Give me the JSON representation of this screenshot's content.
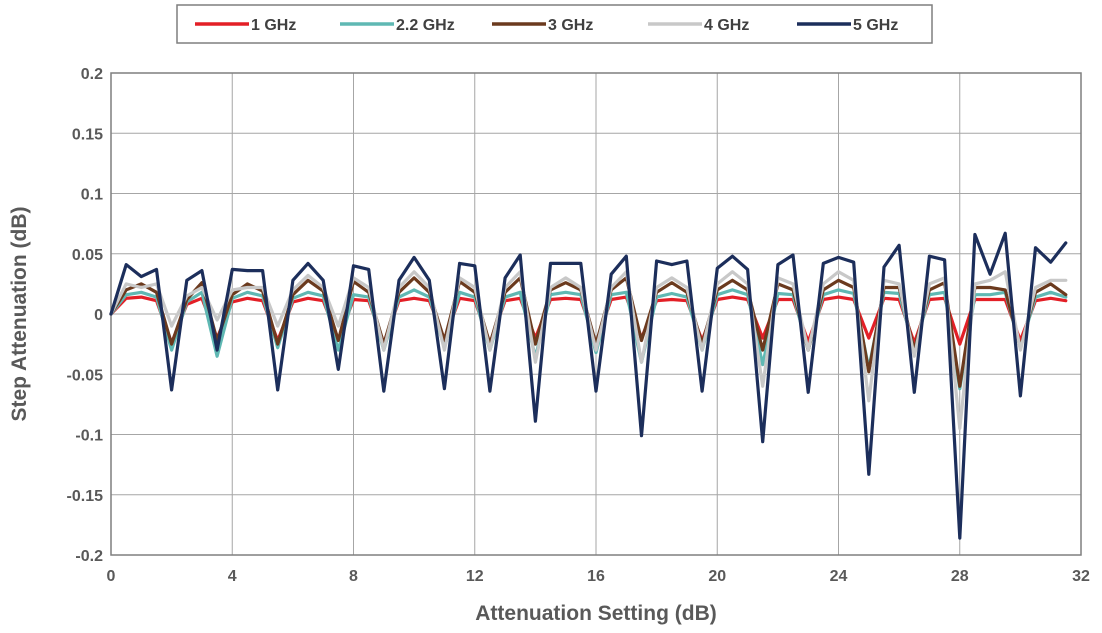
{
  "chart_data": {
    "type": "line",
    "title": "",
    "xlabel": "Attenuation Setting (dB)",
    "ylabel": "Step Attenuation (dB)",
    "xlim": [
      0,
      32
    ],
    "ylim": [
      -0.2,
      0.2
    ],
    "xticks": [
      0,
      4,
      8,
      12,
      16,
      20,
      24,
      28,
      32
    ],
    "yticks": [
      -0.2,
      -0.15,
      -0.1,
      -0.05,
      0,
      0.05,
      0.1,
      0.15,
      0.2
    ],
    "ytick_labels": [
      "-0.2",
      "-0.15",
      "-0.1",
      "-0.05",
      "0",
      "0.05",
      "0.1",
      "0.15",
      "0.2"
    ],
    "grid": true,
    "legend_position": "top",
    "x": [
      0,
      0.5,
      1,
      1.5,
      2,
      2.5,
      3,
      3.5,
      4,
      4.5,
      5,
      5.5,
      6,
      6.5,
      7,
      7.5,
      8,
      8.5,
      9,
      9.5,
      10,
      10.5,
      11,
      11.5,
      12,
      12.5,
      13,
      13.5,
      14,
      14.5,
      15,
      15.5,
      16,
      16.5,
      17,
      17.5,
      18,
      18.5,
      19,
      19.5,
      20,
      20.5,
      21,
      21.5,
      22,
      22.5,
      23,
      23.5,
      24,
      24.5,
      25,
      25.5,
      26,
      26.5,
      27,
      27.5,
      28,
      28.5,
      29,
      29.5,
      30,
      30.5,
      31,
      31.5
    ],
    "series": [
      {
        "name": "1 GHz",
        "color": "#e31f26",
        "values": [
          0,
          0.013,
          0.014,
          0.011,
          -0.024,
          0.008,
          0.013,
          -0.02,
          0.01,
          0.013,
          0.011,
          -0.022,
          0.01,
          0.013,
          0.011,
          -0.021,
          0.012,
          0.011,
          -0.024,
          0.011,
          0.013,
          0.011,
          -0.021,
          0.013,
          0.011,
          -0.024,
          0.011,
          0.013,
          -0.02,
          0.012,
          0.013,
          0.012,
          -0.024,
          0.012,
          0.014,
          -0.02,
          0.011,
          0.012,
          0.011,
          -0.022,
          0.012,
          0.014,
          0.012,
          -0.02,
          0.012,
          0.012,
          -0.023,
          0.012,
          0.014,
          0.012,
          -0.02,
          0.013,
          0.012,
          -0.024,
          0.012,
          0.013,
          -0.025,
          0.012,
          0.012,
          0.012,
          -0.022,
          0.011,
          0.013,
          0.011
        ]
      },
      {
        "name": "2.2 GHz",
        "color": "#5fb8b3",
        "values": [
          0,
          0.016,
          0.018,
          0.014,
          -0.03,
          0.01,
          0.018,
          -0.035,
          0.013,
          0.018,
          0.015,
          -0.028,
          0.013,
          0.018,
          0.015,
          -0.03,
          0.016,
          0.014,
          -0.03,
          0.014,
          0.02,
          0.014,
          -0.028,
          0.018,
          0.014,
          -0.03,
          0.014,
          0.018,
          -0.036,
          0.016,
          0.018,
          0.016,
          -0.032,
          0.016,
          0.018,
          -0.04,
          0.014,
          0.017,
          0.014,
          -0.03,
          0.016,
          0.02,
          0.016,
          -0.042,
          0.017,
          0.016,
          -0.03,
          0.016,
          0.02,
          0.017,
          -0.045,
          0.018,
          0.017,
          -0.03,
          0.016,
          0.018,
          -0.062,
          0.016,
          0.016,
          0.018,
          -0.028,
          0.014,
          0.018,
          0.014
        ]
      },
      {
        "name": "3 GHz",
        "color": "#6b3a1e",
        "values": [
          0,
          0.02,
          0.025,
          0.018,
          -0.025,
          0.012,
          0.026,
          -0.022,
          0.016,
          0.025,
          0.019,
          -0.025,
          0.016,
          0.028,
          0.019,
          -0.022,
          0.027,
          0.018,
          -0.025,
          0.018,
          0.03,
          0.018,
          -0.022,
          0.027,
          0.018,
          -0.025,
          0.018,
          0.03,
          -0.025,
          0.02,
          0.026,
          0.02,
          -0.025,
          0.02,
          0.03,
          -0.022,
          0.018,
          0.026,
          0.018,
          -0.025,
          0.02,
          0.028,
          0.02,
          -0.03,
          0.025,
          0.02,
          -0.03,
          0.02,
          0.028,
          0.022,
          -0.048,
          0.022,
          0.022,
          -0.03,
          0.02,
          0.026,
          -0.06,
          0.022,
          0.022,
          0.02,
          -0.028,
          0.018,
          0.025,
          0.016
        ]
      },
      {
        "name": "4 GHz",
        "color": "#c8c8c8",
        "values": [
          0,
          0.025,
          0.022,
          0.025,
          -0.01,
          0.015,
          0.022,
          -0.005,
          0.02,
          0.022,
          0.022,
          -0.01,
          0.02,
          0.032,
          0.022,
          -0.01,
          0.03,
          0.022,
          -0.03,
          0.022,
          0.035,
          0.022,
          -0.03,
          0.03,
          0.022,
          -0.03,
          0.022,
          0.035,
          -0.04,
          0.022,
          0.03,
          0.022,
          -0.03,
          0.022,
          0.035,
          -0.04,
          0.022,
          0.03,
          0.022,
          -0.03,
          0.025,
          0.035,
          0.025,
          -0.06,
          0.03,
          0.025,
          -0.03,
          0.025,
          0.035,
          0.028,
          -0.072,
          0.028,
          0.025,
          -0.035,
          0.025,
          0.03,
          -0.095,
          0.025,
          0.028,
          0.035,
          -0.03,
          0.022,
          0.028,
          0.028
        ]
      },
      {
        "name": "5 GHz",
        "color": "#1c2e5b",
        "values": [
          0,
          0.041,
          0.031,
          0.037,
          -0.063,
          0.028,
          0.036,
          -0.03,
          0.037,
          0.036,
          0.036,
          -0.063,
          0.028,
          0.042,
          0.028,
          -0.046,
          0.04,
          0.037,
          -0.064,
          0.028,
          0.047,
          0.028,
          -0.062,
          0.042,
          0.04,
          -0.064,
          0.03,
          0.049,
          -0.089,
          0.042,
          0.042,
          0.042,
          -0.064,
          0.033,
          0.048,
          -0.101,
          0.044,
          0.041,
          0.044,
          -0.064,
          0.038,
          0.048,
          0.037,
          -0.106,
          0.041,
          0.049,
          -0.065,
          0.042,
          0.047,
          0.043,
          -0.133,
          0.039,
          0.057,
          -0.065,
          0.048,
          0.045,
          -0.186,
          0.066,
          0.033,
          0.067,
          -0.068,
          0.055,
          0.043,
          0.059
        ]
      }
    ]
  }
}
